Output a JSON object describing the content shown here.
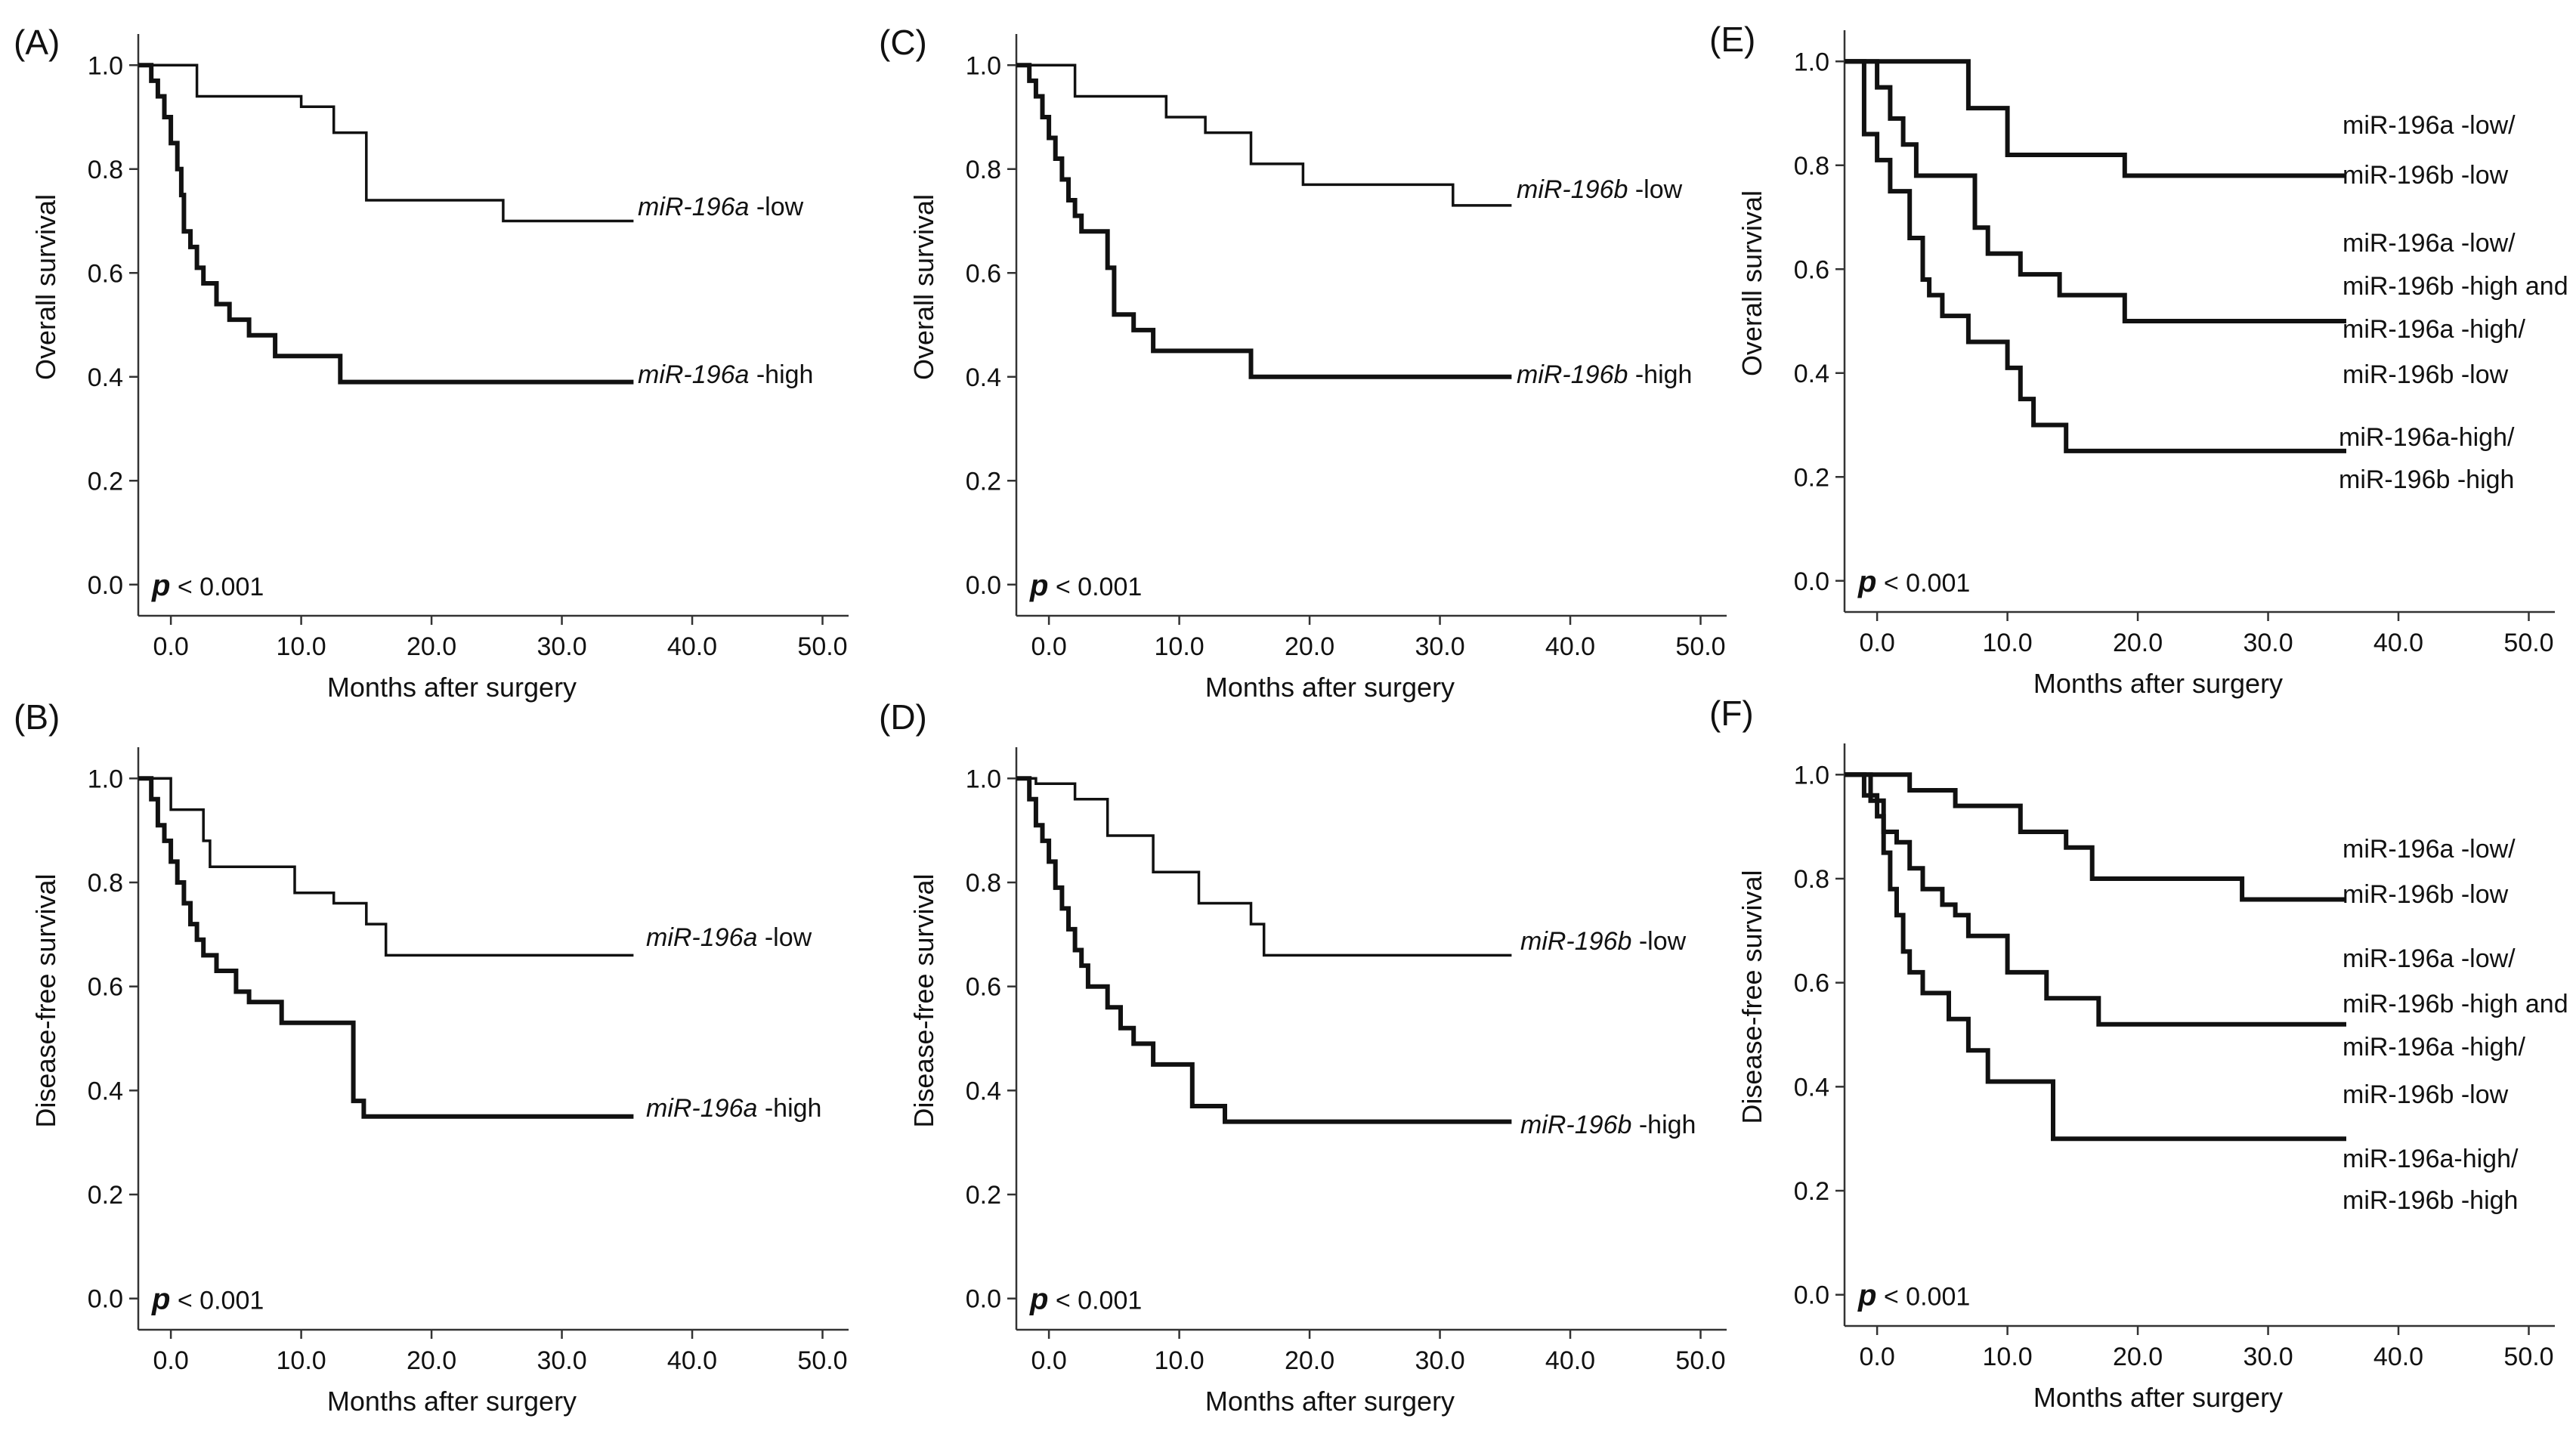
{
  "chart_data": [
    {
      "type": "line",
      "panel": "(A)",
      "xlabel": "Months after surgery",
      "ylabel": "Overall survival",
      "xlim": [
        -2.5,
        52
      ],
      "ylim": [
        -0.06,
        1.06
      ],
      "xticks": [
        "0.0",
        "10.0",
        "20.0",
        "30.0",
        "40.0",
        "50.0"
      ],
      "yticks": [
        "0.0",
        "0.2",
        "0.4",
        "0.6",
        "0.8",
        "1.0"
      ],
      "pvalue": {
        "p": "p",
        "text": " < 0.001"
      },
      "series": [
        {
          "label": [
            "miR-196a",
            " -low"
          ],
          "label_italic": [
            true,
            false
          ],
          "weight": "thin",
          "x": [
            -2.5,
            2.0,
            2.0,
            10.0,
            10.0,
            12.5,
            12.5,
            15.0,
            15.0,
            25.5,
            25.5,
            35.5
          ],
          "y": [
            1.0,
            1.0,
            0.94,
            0.94,
            0.92,
            0.92,
            0.87,
            0.87,
            0.74,
            0.74,
            0.7,
            0.7
          ]
        },
        {
          "label": [
            "miR-196a",
            " -high"
          ],
          "label_italic": [
            true,
            false
          ],
          "weight": "thick",
          "x": [
            -2.5,
            -1.5,
            -1.5,
            -1.0,
            -1.0,
            -0.5,
            -0.5,
            0.0,
            0.0,
            0.5,
            0.5,
            0.8,
            0.8,
            1.0,
            1.0,
            1.5,
            1.5,
            2.0,
            2.0,
            2.5,
            2.5,
            3.5,
            3.5,
            4.5,
            4.5,
            6.0,
            6.0,
            8.0,
            8.0,
            13.0,
            13.0,
            35.5
          ],
          "y": [
            1.0,
            1.0,
            0.97,
            0.97,
            0.94,
            0.94,
            0.9,
            0.9,
            0.85,
            0.85,
            0.8,
            0.8,
            0.75,
            0.75,
            0.68,
            0.68,
            0.65,
            0.65,
            0.61,
            0.61,
            0.58,
            0.58,
            0.54,
            0.54,
            0.51,
            0.51,
            0.48,
            0.48,
            0.44,
            0.44,
            0.39,
            0.39
          ]
        }
      ]
    },
    {
      "type": "line",
      "panel": "(B)",
      "xlabel": "Months after surgery",
      "ylabel": "Disease-free survival",
      "xlim": [
        -2.5,
        52
      ],
      "ylim": [
        -0.06,
        1.06
      ],
      "xticks": [
        "0.0",
        "10.0",
        "20.0",
        "30.0",
        "40.0",
        "50.0"
      ],
      "yticks": [
        "0.0",
        "0.2",
        "0.4",
        "0.6",
        "0.8",
        "1.0"
      ],
      "pvalue": {
        "p": "p",
        "text": " < 0.001"
      },
      "series": [
        {
          "label": [
            "miR-196a",
            " -low"
          ],
          "label_italic": [
            true,
            false
          ],
          "weight": "thin",
          "x": [
            -2.5,
            0.0,
            0.0,
            2.5,
            2.5,
            3.0,
            3.0,
            9.5,
            9.5,
            12.5,
            12.5,
            15.0,
            15.0,
            16.5,
            16.5,
            35.5
          ],
          "y": [
            1.0,
            1.0,
            0.94,
            0.94,
            0.88,
            0.88,
            0.83,
            0.83,
            0.78,
            0.78,
            0.76,
            0.76,
            0.72,
            0.72,
            0.66,
            0.66
          ]
        },
        {
          "label": [
            "miR-196a",
            " -high"
          ],
          "label_italic": [
            true,
            false
          ],
          "weight": "thick",
          "x": [
            -2.5,
            -1.5,
            -1.5,
            -1.0,
            -1.0,
            -0.5,
            -0.5,
            0.0,
            0.0,
            0.5,
            0.5,
            1.0,
            1.0,
            1.5,
            1.5,
            2.0,
            2.0,
            2.5,
            2.5,
            3.5,
            3.5,
            5.0,
            5.0,
            6.0,
            6.0,
            8.5,
            8.5,
            14.0,
            14.0,
            14.8,
            14.8,
            35.5
          ],
          "y": [
            1.0,
            1.0,
            0.96,
            0.96,
            0.91,
            0.91,
            0.88,
            0.88,
            0.84,
            0.84,
            0.8,
            0.8,
            0.76,
            0.76,
            0.72,
            0.72,
            0.69,
            0.69,
            0.66,
            0.66,
            0.63,
            0.63,
            0.59,
            0.59,
            0.57,
            0.57,
            0.53,
            0.53,
            0.38,
            0.38,
            0.35,
            0.35
          ]
        }
      ]
    },
    {
      "type": "line",
      "panel": "(C)",
      "xlabel": "Months after surgery",
      "ylabel": "Overall survival",
      "xlim": [
        -2.5,
        52
      ],
      "ylim": [
        -0.06,
        1.06
      ],
      "xticks": [
        "0.0",
        "10.0",
        "20.0",
        "30.0",
        "40.0",
        "50.0"
      ],
      "yticks": [
        "0.0",
        "0.2",
        "0.4",
        "0.6",
        "0.8",
        "1.0"
      ],
      "pvalue": {
        "p": "p",
        "text": " < 0.001"
      },
      "series": [
        {
          "label": [
            "miR-196b",
            " -low"
          ],
          "label_italic": [
            true,
            false
          ],
          "weight": "thin",
          "x": [
            -2.5,
            2.0,
            2.0,
            9.0,
            9.0,
            12.0,
            12.0,
            15.5,
            15.5,
            19.5,
            19.5,
            26.0,
            26.0,
            31.0,
            31.0,
            35.5
          ],
          "y": [
            1.0,
            1.0,
            0.94,
            0.94,
            0.9,
            0.9,
            0.87,
            0.87,
            0.81,
            0.81,
            0.77,
            0.77,
            0.77,
            0.77,
            0.73,
            0.73
          ]
        },
        {
          "label": [
            "miR-196b",
            " -high"
          ],
          "label_italic": [
            true,
            false
          ],
          "weight": "thick",
          "x": [
            -2.5,
            -1.5,
            -1.5,
            -1.0,
            -1.0,
            -0.5,
            -0.5,
            0.0,
            0.0,
            0.5,
            0.5,
            1.0,
            1.0,
            1.5,
            1.5,
            2.0,
            2.0,
            2.5,
            2.5,
            4.5,
            4.5,
            5.0,
            5.0,
            6.5,
            6.5,
            8.0,
            8.0,
            15.5,
            15.5,
            35.5
          ],
          "y": [
            1.0,
            1.0,
            0.97,
            0.97,
            0.94,
            0.94,
            0.9,
            0.9,
            0.86,
            0.86,
            0.82,
            0.82,
            0.78,
            0.78,
            0.74,
            0.74,
            0.71,
            0.71,
            0.68,
            0.68,
            0.61,
            0.61,
            0.52,
            0.52,
            0.49,
            0.49,
            0.45,
            0.45,
            0.4,
            0.4
          ]
        }
      ]
    },
    {
      "type": "line",
      "panel": "(D)",
      "xlabel": "Months after surgery",
      "ylabel": "Disease-free survival",
      "xlim": [
        -2.5,
        52
      ],
      "ylim": [
        -0.06,
        1.06
      ],
      "xticks": [
        "0.0",
        "10.0",
        "20.0",
        "30.0",
        "40.0",
        "50.0"
      ],
      "yticks": [
        "0.0",
        "0.2",
        "0.4",
        "0.6",
        "0.8",
        "1.0"
      ],
      "pvalue": {
        "p": "p",
        "text": " < 0.001"
      },
      "series": [
        {
          "label": [
            "miR-196b",
            " -low"
          ],
          "label_italic": [
            true,
            false
          ],
          "weight": "thin",
          "x": [
            -2.5,
            -1.0,
            -1.0,
            2.0,
            2.0,
            4.5,
            4.5,
            8.0,
            8.0,
            11.5,
            11.5,
            15.5,
            15.5,
            16.5,
            16.5,
            35.5
          ],
          "y": [
            1.0,
            1.0,
            0.99,
            0.99,
            0.96,
            0.96,
            0.89,
            0.89,
            0.82,
            0.82,
            0.76,
            0.76,
            0.72,
            0.72,
            0.66,
            0.66
          ]
        },
        {
          "label": [
            "miR-196b",
            " -high"
          ],
          "label_italic": [
            true,
            false
          ],
          "weight": "thick",
          "x": [
            -2.5,
            -1.5,
            -1.5,
            -1.0,
            -1.0,
            -0.5,
            -0.5,
            0.0,
            0.0,
            0.5,
            0.5,
            1.0,
            1.0,
            1.5,
            1.5,
            2.0,
            2.0,
            2.5,
            2.5,
            3.0,
            3.0,
            4.5,
            4.5,
            5.5,
            5.5,
            6.5,
            6.5,
            8.0,
            8.0,
            11.0,
            11.0,
            13.5,
            13.5,
            35.5
          ],
          "y": [
            1.0,
            1.0,
            0.96,
            0.96,
            0.91,
            0.91,
            0.88,
            0.88,
            0.84,
            0.84,
            0.79,
            0.79,
            0.75,
            0.75,
            0.71,
            0.71,
            0.67,
            0.67,
            0.64,
            0.64,
            0.6,
            0.6,
            0.56,
            0.56,
            0.52,
            0.52,
            0.49,
            0.49,
            0.45,
            0.45,
            0.37,
            0.37,
            0.34,
            0.34
          ]
        }
      ]
    },
    {
      "type": "line",
      "panel": "(E)",
      "xlabel": "Months after surgery",
      "ylabel": "Overall survival",
      "xlim": [
        -2.5,
        52
      ],
      "ylim": [
        -0.06,
        1.06
      ],
      "xticks": [
        "0.0",
        "10.0",
        "20.0",
        "30.0",
        "40.0",
        "50.0"
      ],
      "yticks": [
        "0.0",
        "0.2",
        "0.4",
        "0.6",
        "0.8",
        "1.0"
      ],
      "pvalue": {
        "p": "p",
        "text": " < 0.001"
      },
      "series": [
        {
          "label_lines": [
            [
              "miR-196a",
              " -low/"
            ],
            [
              "miR-196b",
              " -low"
            ]
          ],
          "weight": "thick",
          "x": [
            -2.5,
            7.0,
            7.0,
            10.0,
            10.0,
            19.0,
            19.0,
            36.0
          ],
          "y": [
            1.0,
            1.0,
            0.91,
            0.91,
            0.82,
            0.82,
            0.78,
            0.78
          ]
        },
        {
          "label_lines": [
            [
              "miR-196a",
              " -low/"
            ],
            [
              "miR-196b",
              " -high and"
            ],
            [
              "miR-196a",
              " -high/"
            ],
            [
              "miR-196b",
              " -low"
            ]
          ],
          "weight": "thick",
          "x": [
            -2.5,
            0.0,
            0.0,
            1.0,
            1.0,
            2.0,
            2.0,
            3.0,
            3.0,
            7.5,
            7.5,
            8.5,
            8.5,
            11.0,
            11.0,
            14.0,
            14.0,
            19.0,
            19.0,
            36.0
          ],
          "y": [
            1.0,
            1.0,
            0.95,
            0.95,
            0.89,
            0.89,
            0.84,
            0.84,
            0.78,
            0.78,
            0.68,
            0.68,
            0.63,
            0.63,
            0.59,
            0.59,
            0.55,
            0.55,
            0.5,
            0.5
          ]
        },
        {
          "label_lines": [
            [
              "miR-196a",
              "-high/"
            ],
            [
              "miR-196b",
              " -high"
            ]
          ],
          "weight": "thick",
          "x": [
            -2.5,
            -1.0,
            -1.0,
            0.0,
            0.0,
            1.0,
            1.0,
            2.5,
            2.5,
            3.5,
            3.5,
            4.0,
            4.0,
            5.0,
            5.0,
            7.0,
            7.0,
            10.0,
            10.0,
            11.0,
            11.0,
            12.0,
            12.0,
            14.5,
            14.5,
            18.0,
            18.0,
            36.0
          ],
          "y": [
            1.0,
            1.0,
            0.86,
            0.86,
            0.81,
            0.81,
            0.75,
            0.75,
            0.66,
            0.66,
            0.58,
            0.58,
            0.55,
            0.55,
            0.51,
            0.51,
            0.46,
            0.46,
            0.41,
            0.41,
            0.35,
            0.35,
            0.3,
            0.3,
            0.25,
            0.25,
            0.25,
            0.25
          ]
        }
      ]
    },
    {
      "type": "line",
      "panel": "(F)",
      "xlabel": "Months after surgery",
      "ylabel": "Disease-free survival",
      "xlim": [
        -2.5,
        52
      ],
      "ylim": [
        -0.06,
        1.06
      ],
      "xticks": [
        "0.0",
        "10.0",
        "20.0",
        "30.0",
        "40.0",
        "50.0"
      ],
      "yticks": [
        "0.0",
        "0.2",
        "0.4",
        "0.6",
        "0.8",
        "1.0"
      ],
      "pvalue": {
        "p": "p",
        "text": " < 0.001"
      },
      "series": [
        {
          "label_lines": [
            [
              "miR-196a",
              " -low/"
            ],
            [
              "miR-196b",
              " -low"
            ]
          ],
          "weight": "thick",
          "x": [
            -2.5,
            2.5,
            2.5,
            6.0,
            6.0,
            11.0,
            11.0,
            14.5,
            14.5,
            16.5,
            16.5,
            24.0,
            24.0,
            28.0,
            28.0,
            36.0
          ],
          "y": [
            1.0,
            1.0,
            0.97,
            0.97,
            0.94,
            0.94,
            0.89,
            0.89,
            0.86,
            0.86,
            0.8,
            0.8,
            0.8,
            0.8,
            0.76,
            0.76
          ]
        },
        {
          "label_lines": [
            [
              "miR-196a",
              " -low/"
            ],
            [
              "miR-196b",
              " -high and"
            ],
            [
              "miR-196a",
              " -high/"
            ],
            [
              "miR-196b",
              " -low"
            ]
          ],
          "weight": "thick",
          "x": [
            -2.5,
            -0.5,
            -0.5,
            0.5,
            0.5,
            1.5,
            1.5,
            2.5,
            2.5,
            3.5,
            3.5,
            5.0,
            5.0,
            6.0,
            6.0,
            7.0,
            7.0,
            10.0,
            10.0,
            13.0,
            13.0,
            17.0,
            17.0,
            36.0
          ],
          "y": [
            1.0,
            1.0,
            0.95,
            0.95,
            0.89,
            0.89,
            0.87,
            0.87,
            0.82,
            0.82,
            0.78,
            0.78,
            0.75,
            0.75,
            0.73,
            0.73,
            0.69,
            0.69,
            0.62,
            0.62,
            0.57,
            0.57,
            0.52,
            0.52
          ]
        },
        {
          "label_lines": [
            [
              "miR-196a",
              "-high/"
            ],
            [
              "miR-196b",
              " -high"
            ]
          ],
          "weight": "thick",
          "x": [
            -2.5,
            -1.0,
            -1.0,
            0.0,
            0.0,
            0.5,
            0.5,
            1.0,
            1.0,
            1.5,
            1.5,
            2.0,
            2.0,
            2.5,
            2.5,
            3.5,
            3.5,
            5.5,
            5.5,
            7.0,
            7.0,
            8.5,
            8.5,
            13.5,
            13.5,
            36.0
          ],
          "y": [
            1.0,
            1.0,
            0.96,
            0.96,
            0.92,
            0.92,
            0.85,
            0.85,
            0.78,
            0.78,
            0.73,
            0.73,
            0.66,
            0.66,
            0.62,
            0.62,
            0.58,
            0.58,
            0.53,
            0.53,
            0.47,
            0.47,
            0.41,
            0.41,
            0.3,
            0.3
          ]
        }
      ]
    }
  ]
}
